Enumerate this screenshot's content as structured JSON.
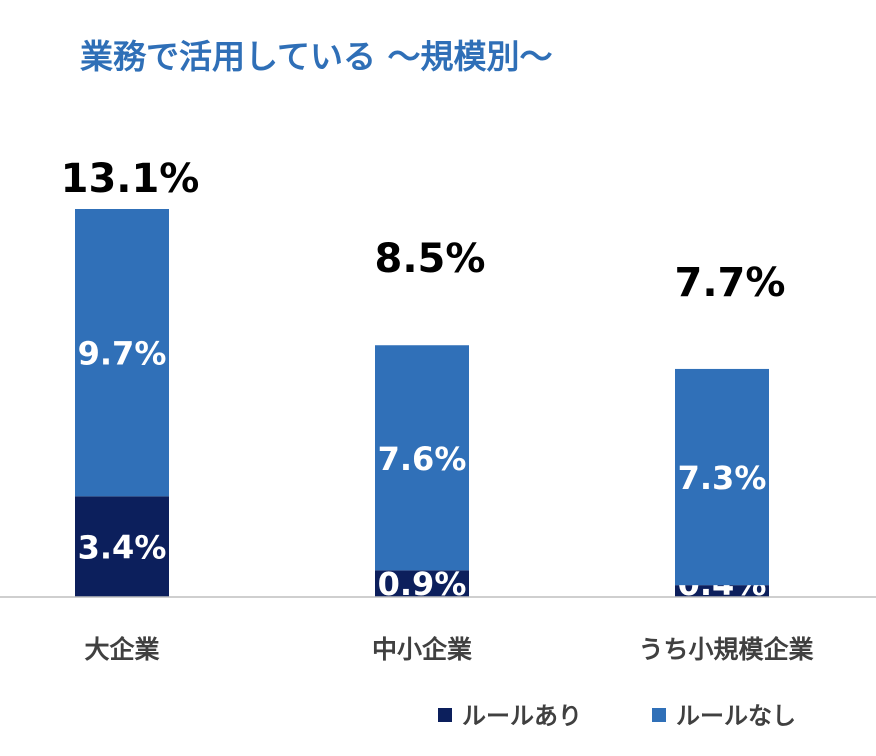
{
  "chart_data": {
    "type": "bar",
    "stacked": true,
    "title": "業務で活用している ～規模別～",
    "categories": [
      "大企業",
      "中小企業",
      "うち小規模企業"
    ],
    "totals": [
      "13.1%",
      "8.5%",
      "7.7%"
    ],
    "series": [
      {
        "name": "ルールあり",
        "values": [
          3.4,
          0.9,
          0.4
        ],
        "labels": [
          "3.4%",
          "0.9%",
          "0.4%"
        ],
        "color": "#0c1f5c"
      },
      {
        "name": "ルールなし",
        "values": [
          9.7,
          7.6,
          7.3
        ],
        "labels": [
          "9.7%",
          "7.6%",
          "7.3%"
        ],
        "color": "#3070b8"
      }
    ],
    "ylim": [
      0,
      14
    ],
    "grid": false,
    "legend_position": "bottom-right",
    "title_color": "#2f6fb7",
    "axis_color": "#bfbfbf"
  }
}
